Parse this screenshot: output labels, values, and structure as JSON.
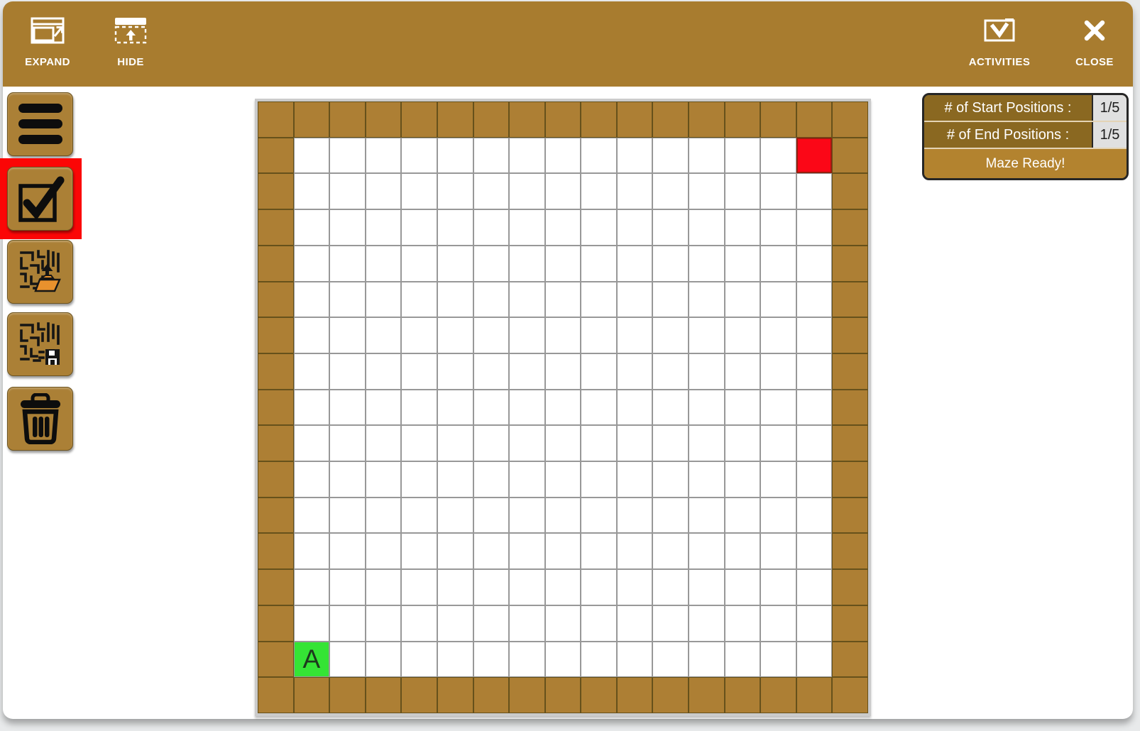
{
  "header": {
    "expand_label": "EXPAND",
    "hide_label": "HIDE",
    "activities_label": "ACTIVITIES",
    "close_label": "CLOSE",
    "background_color": "#a87c2f"
  },
  "toolbar": {
    "buttons": [
      {
        "id": "menu",
        "icon": "hamburger-icon",
        "selected": false
      },
      {
        "id": "check-maze",
        "icon": "checkbox-icon",
        "selected": true
      },
      {
        "id": "load-maze",
        "icon": "load-maze-icon",
        "selected": false
      },
      {
        "id": "save-maze",
        "icon": "save-maze-icon",
        "selected": false
      },
      {
        "id": "delete-maze",
        "icon": "trash-icon",
        "selected": false
      }
    ],
    "selected_outline_color": "#fb0606"
  },
  "maze": {
    "rows": 17,
    "cols": 17,
    "perimeter_walls": true,
    "wall_color": "#ad7f34",
    "wall_border_color": "#66511b",
    "open_color": "#ffffff",
    "open_border_color": "#989898",
    "start_cells": [
      {
        "row": 15,
        "col": 1,
        "label": "A",
        "color": "#35e435",
        "text_color": "#1d3a1d"
      }
    ],
    "end_cells": [
      {
        "row": 1,
        "col": 15,
        "color": "#fb0717",
        "border_color": "#96200f"
      }
    ]
  },
  "status_panel": {
    "rows": [
      {
        "label": "# of Start Positions :",
        "value": "1/5"
      },
      {
        "label": "# of End Positions :",
        "value": "1/5"
      }
    ],
    "status": "Maze Ready!",
    "label_bg": "#8a6821",
    "status_bg": "#b3832f",
    "value_bg": "#e0e0e0"
  }
}
